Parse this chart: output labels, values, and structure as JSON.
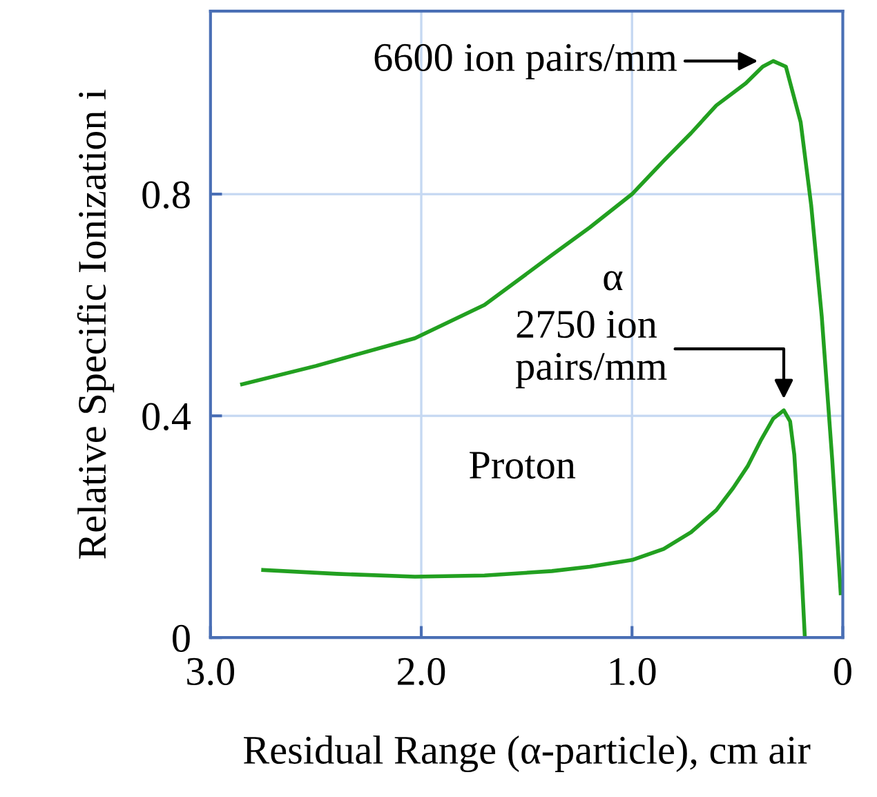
{
  "chart_data": {
    "type": "line",
    "xlabel": "Residual Range (α-particle), cm air",
    "ylabel": "Relative Specific Ionization i",
    "xlim": [
      3.0,
      0
    ],
    "xticks": [
      {
        "value": 3,
        "label": "3.0"
      },
      {
        "value": 2,
        "label": "2.0"
      },
      {
        "value": 1,
        "label": "1.0"
      },
      0
    ],
    "ylim": [
      0,
      1.13
    ],
    "yticks": [
      0,
      0.4,
      0.8
    ],
    "grid": true,
    "marker": "none",
    "line_style": "solid",
    "series": [
      {
        "name": "α",
        "color": "#22a020",
        "x": [
          2.85,
          2.5,
          2.03,
          1.7,
          1.38,
          1.2,
          1.0,
          0.85,
          0.72,
          0.6,
          0.46,
          0.38,
          0.33,
          0.27,
          0.2,
          0.15,
          0.1,
          0.05,
          0.01
        ],
        "values": [
          0.457,
          0.49,
          0.54,
          0.6,
          0.69,
          0.74,
          0.8,
          0.86,
          0.91,
          0.96,
          1.0,
          1.03,
          1.04,
          1.03,
          0.93,
          0.78,
          0.58,
          0.32,
          0.08
        ]
      },
      {
        "name": "Proton",
        "color": "#22a020",
        "x": [
          2.75,
          2.4,
          2.03,
          1.7,
          1.38,
          1.2,
          1.0,
          0.85,
          0.72,
          0.6,
          0.52,
          0.45,
          0.39,
          0.33,
          0.28,
          0.25,
          0.23,
          0.2,
          0.18
        ],
        "values": [
          0.122,
          0.115,
          0.11,
          0.112,
          0.12,
          0.128,
          0.14,
          0.16,
          0.19,
          0.23,
          0.27,
          0.31,
          0.355,
          0.395,
          0.41,
          0.39,
          0.33,
          0.15,
          0
        ]
      }
    ],
    "annotations": [
      {
        "text": "6600 ion pairs/mm",
        "x": 0.33,
        "y": 1.04
      },
      {
        "text": "2750 ion\npairs/mm",
        "x": 0.28,
        "y": 0.41
      }
    ]
  }
}
